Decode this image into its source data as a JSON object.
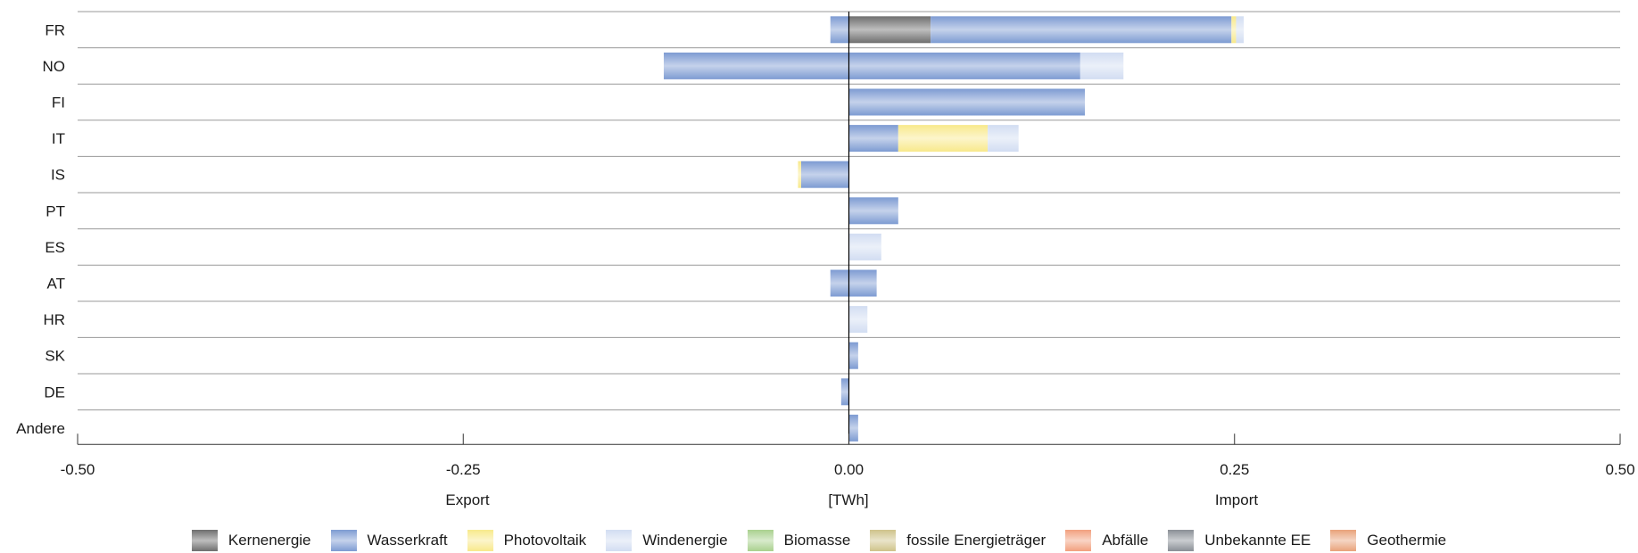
{
  "chart_data": {
    "type": "bar",
    "orientation": "horizontal",
    "stacked": true,
    "categories": [
      "FR",
      "NO",
      "FI",
      "IT",
      "IS",
      "PT",
      "ES",
      "AT",
      "HR",
      "SK",
      "DE",
      "Andere"
    ],
    "xlim": [
      -0.5,
      0.5
    ],
    "xticks": [
      -0.5,
      -0.25,
      0.0,
      0.25,
      0.5
    ],
    "xtick_labels": [
      "-0.50",
      "-0.25",
      "0.00",
      "0.25",
      "0.50"
    ],
    "xlabel": "[TWh]",
    "left_label": "Export",
    "right_label": "Import",
    "grid": "horizontal lines between categories",
    "legend_position": "bottom",
    "series": [
      {
        "name": "Kernenergie",
        "color": "#6e6e6e",
        "values": [
          0.053,
          0,
          0,
          0,
          0,
          0,
          0,
          0,
          0,
          0,
          0,
          0
        ]
      },
      {
        "name": "Wasserkraft",
        "color": "#7d9bd2",
        "values": [
          [
            -0.012,
            0.195
          ],
          [
            -0.12,
            0.15
          ],
          0.153,
          0.032,
          -0.031,
          0.032,
          0,
          [
            -0.012,
            0.018
          ],
          0,
          0.006,
          -0.005,
          0.006
        ]
      },
      {
        "name": "Photovoltaik",
        "color": "#f8e98b",
        "values": [
          0.003,
          0,
          0,
          0.058,
          -0.002,
          0,
          0,
          0,
          0,
          0,
          0,
          0
        ]
      },
      {
        "name": "Windenergie",
        "color": "#d2ddf2",
        "values": [
          0.005,
          0.028,
          0,
          0.02,
          0,
          0,
          0.021,
          0,
          0.012,
          0,
          0,
          0
        ]
      },
      {
        "name": "Biomasse",
        "color": "#a9d18e",
        "values": [
          0,
          0,
          0,
          0,
          0,
          0,
          0,
          0,
          0,
          0,
          0,
          0
        ]
      },
      {
        "name": "fossile Energieträger",
        "color": "#cfc38a",
        "values": [
          0,
          0,
          0,
          0,
          0,
          0,
          0,
          0,
          0,
          0,
          0,
          0
        ]
      },
      {
        "name": "Abfälle",
        "color": "#f2a07e",
        "values": [
          0,
          0,
          0,
          0,
          0,
          0,
          0,
          0,
          0,
          0,
          0,
          0
        ]
      },
      {
        "name": "Unbekannte EE",
        "color": "#8a8f96",
        "values": [
          0,
          0,
          0,
          0,
          0,
          0,
          0,
          0,
          0,
          0,
          0,
          0
        ]
      },
      {
        "name": "Geothermie",
        "color": "#e8a27a",
        "values": [
          0,
          0,
          0,
          0,
          0,
          0,
          0,
          0,
          0,
          0,
          0,
          0
        ]
      }
    ]
  },
  "legend": [
    {
      "label": "Kernenergie",
      "color": "#6e6e6e"
    },
    {
      "label": "Wasserkraft",
      "color": "#7d9bd2"
    },
    {
      "label": "Photovoltaik",
      "color": "#f8e98b"
    },
    {
      "label": "Windenergie",
      "color": "#d2ddf2"
    },
    {
      "label": "Biomasse",
      "color": "#a9d18e"
    },
    {
      "label": "fossile Energieträger",
      "color": "#cfc38a"
    },
    {
      "label": "Abfälle",
      "color": "#f2a07e"
    },
    {
      "label": "Unbekannte EE",
      "color": "#8a8f96"
    },
    {
      "label": "Geothermie",
      "color": "#e8a27a"
    }
  ]
}
